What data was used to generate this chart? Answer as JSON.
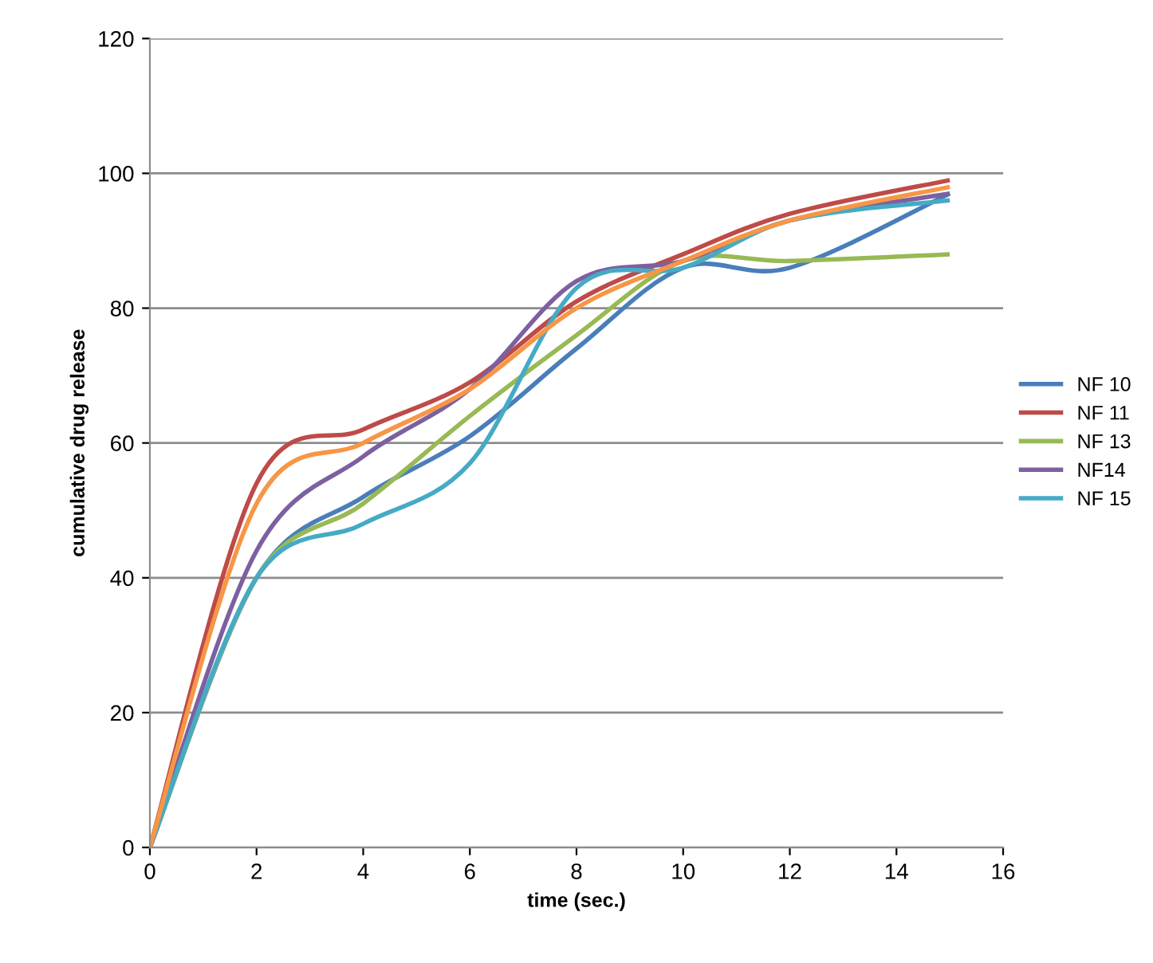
{
  "chart_data": {
    "type": "line",
    "xlabel": "time (sec.)",
    "ylabel": "cumulative drug release",
    "x": [
      0,
      2,
      4,
      6,
      8,
      10,
      12,
      15
    ],
    "series": [
      {
        "name": "NF 10",
        "color": "#4a7ebb",
        "values": [
          0,
          40,
          52,
          61,
          74,
          86,
          86,
          97
        ]
      },
      {
        "name": "NF 11",
        "color": "#be4b48",
        "values": [
          0,
          54,
          62,
          69,
          81,
          88,
          94,
          99
        ]
      },
      {
        "name": "NF 13",
        "color": "#98b954",
        "values": [
          0,
          40,
          51,
          64,
          76,
          87,
          87,
          88
        ]
      },
      {
        "name": "NF14",
        "color": "#7d60a0",
        "values": [
          0,
          44,
          58,
          68,
          84,
          87,
          93,
          97
        ]
      },
      {
        "name": "NF 15",
        "color": "#46aac5",
        "values": [
          0,
          40,
          48,
          57,
          83,
          86,
          93,
          96
        ]
      },
      {
        "color": "#f79646",
        "values": [
          0,
          51,
          60,
          68,
          80,
          87,
          93,
          98
        ]
      }
    ],
    "xlim": [
      0,
      16
    ],
    "xticks": [
      0,
      2,
      4,
      6,
      8,
      10,
      12,
      14,
      16
    ],
    "ylim": [
      0,
      120
    ],
    "yticks": [
      0,
      20,
      40,
      60,
      80,
      100,
      120
    ],
    "grid": "y",
    "legend": "right",
    "marker": "none",
    "line_style": "solid"
  }
}
